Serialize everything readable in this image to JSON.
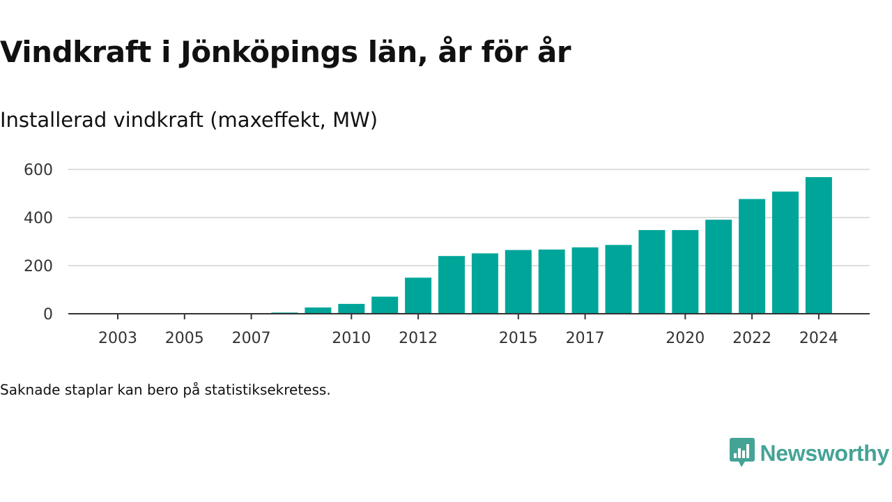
{
  "header": {
    "title": "Vindkraft i Jönköpings län, år för år",
    "subtitle": "Installerad vindkraft (maxeffekt, MW)"
  },
  "footer": {
    "note": "Saknade staplar kan bero på statistiksekretess.",
    "brand": "Newsworthy"
  },
  "colors": {
    "bar": "#00a59a",
    "brand": "#45a396",
    "grid": "#dddddd",
    "axis": "#333333"
  },
  "chart_data": {
    "type": "bar",
    "title": "Vindkraft i Jönköpings län, år för år",
    "subtitle": "Installerad vindkraft (maxeffekt, MW)",
    "xlabel": "",
    "ylabel": "",
    "ylim": [
      0,
      600
    ],
    "yticks": [
      0,
      200,
      400,
      600
    ],
    "xticks": [
      2003,
      2005,
      2007,
      2010,
      2012,
      2015,
      2017,
      2020,
      2022,
      2024
    ],
    "grid": true,
    "legend": "none",
    "categories": [
      2002,
      2003,
      2004,
      2005,
      2006,
      2007,
      2008,
      2009,
      2010,
      2011,
      2012,
      2013,
      2014,
      2015,
      2016,
      2017,
      2018,
      2019,
      2020,
      2021,
      2022,
      2023,
      2024
    ],
    "values": [
      0,
      0,
      0,
      0,
      0,
      0,
      5,
      26,
      41,
      71,
      150,
      240,
      251,
      265,
      267,
      276,
      286,
      348,
      348,
      391,
      477,
      508,
      568
    ]
  }
}
